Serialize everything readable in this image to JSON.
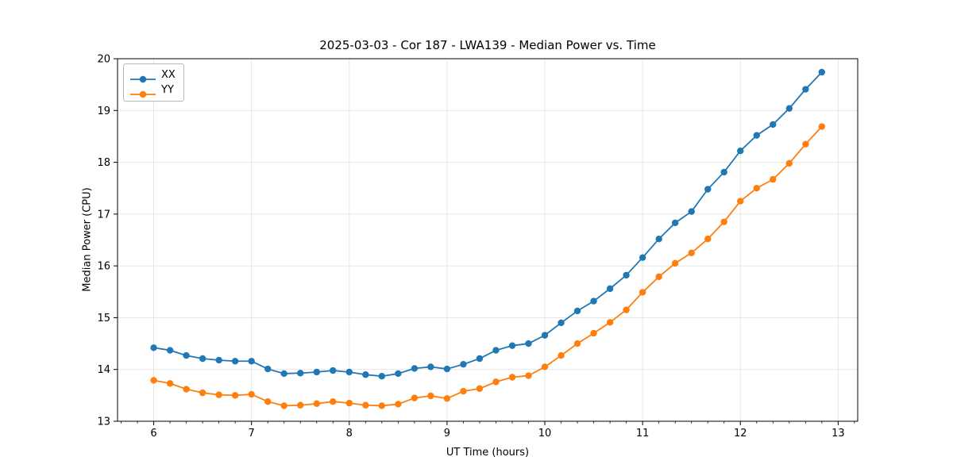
{
  "title": "2025-03-03 - Cor 187 - LWA139 - Median Power vs. Time",
  "colors": {
    "series_xx": "#1f77b4",
    "series_yy": "#ff7f0e",
    "grid": "#e3e3e3",
    "axis": "#000000",
    "background": "#ffffff"
  },
  "chart_data": {
    "type": "line",
    "title": "2025-03-03 - Cor 187 - LWA139 - Median Power vs. Time",
    "xlabel": "UT Time (hours)",
    "ylabel": "Median Power (CPU)",
    "xlim": [
      5.63,
      13.2
    ],
    "ylim": [
      13,
      20
    ],
    "x_ticks": [
      6,
      7,
      8,
      9,
      10,
      11,
      12,
      13
    ],
    "y_ticks": [
      13,
      14,
      15,
      16,
      17,
      18,
      19,
      20
    ],
    "x_minor_divisions": 6,
    "grid": true,
    "legend_position": "upper-left",
    "marker": "circle",
    "x": [
      6,
      6.167,
      6.333,
      6.5,
      6.667,
      6.833,
      7,
      7.167,
      7.333,
      7.5,
      7.667,
      7.833,
      8,
      8.167,
      8.333,
      8.5,
      8.667,
      8.833,
      9,
      9.167,
      9.333,
      9.5,
      9.667,
      9.833,
      10,
      10.167,
      10.333,
      10.5,
      10.667,
      10.833,
      11,
      11.167,
      11.333,
      11.5,
      11.667,
      11.833,
      12,
      12.167,
      12.333,
      12.5,
      12.667,
      12.833
    ],
    "series": [
      {
        "name": "XX",
        "color": "#1f77b4",
        "values": [
          14.42,
          14.37,
          14.27,
          14.21,
          14.18,
          14.16,
          14.16,
          14.01,
          13.92,
          13.93,
          13.95,
          13.98,
          13.95,
          13.9,
          13.87,
          13.92,
          14.02,
          14.05,
          14.01,
          14.1,
          14.21,
          14.37,
          14.46,
          14.5,
          14.66,
          14.9,
          15.13,
          15.32,
          15.56,
          15.82,
          16.16,
          16.52,
          16.83,
          17.05,
          17.48,
          17.81,
          18.22,
          18.52,
          18.73,
          19.04,
          19.41,
          19.74
        ]
      },
      {
        "name": "YY",
        "color": "#ff7f0e",
        "values": [
          13.79,
          13.73,
          13.62,
          13.55,
          13.51,
          13.5,
          13.52,
          13.38,
          13.3,
          13.31,
          13.34,
          13.38,
          13.35,
          13.31,
          13.3,
          13.33,
          13.45,
          13.49,
          13.44,
          13.58,
          13.63,
          13.76,
          13.85,
          13.88,
          14.05,
          14.27,
          14.5,
          14.7,
          14.91,
          15.15,
          15.49,
          15.79,
          16.05,
          16.25,
          16.52,
          16.85,
          17.25,
          17.5,
          17.67,
          17.98,
          18.35,
          18.69
        ]
      }
    ]
  }
}
